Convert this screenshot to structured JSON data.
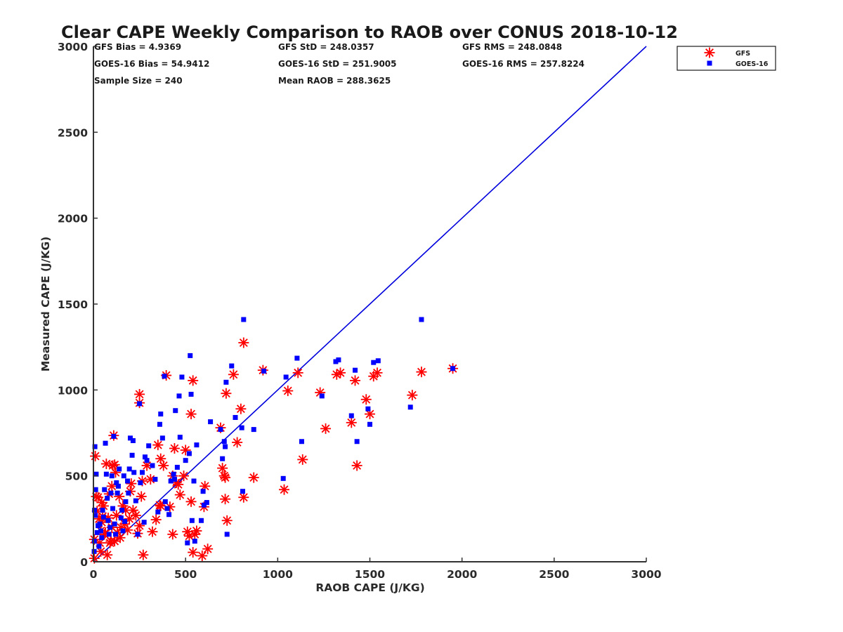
{
  "chart_data": {
    "type": "scatter",
    "title": "Clear CAPE Weekly Comparison to RAOB over CONUS 2018-10-12",
    "xlabel": "RAOB CAPE (J/KG)",
    "ylabel": "Measured CAPE (J/KG)",
    "xlim": [
      0,
      3000
    ],
    "ylim": [
      0,
      3000
    ],
    "xticks": [
      "0",
      "500",
      "1000",
      "1500",
      "2000",
      "2500",
      "3000"
    ],
    "yticks": [
      "0",
      "500",
      "1000",
      "1500",
      "2000",
      "2500",
      "3000"
    ],
    "grid": false,
    "legend_position": "top-right",
    "colors": {
      "gfs": "#ff0000",
      "goes": "#0000ff",
      "line": "#0000dd",
      "axis": "#333333"
    },
    "reference_line": {
      "name": "1:1 line",
      "from": [
        0,
        0
      ],
      "to": [
        3000,
        3000
      ]
    },
    "stats": [
      [
        "GFS Bias = 4.9369",
        "GFS StD = 248.0357",
        "GFS RMS = 248.0848"
      ],
      [
        "GOES-16 Bias = 54.9412",
        "GOES-16 StD = 251.9005",
        "GOES-16 RMS = 257.8224"
      ],
      [
        "Sample Size = 240",
        "Mean RAOB = 288.3625",
        ""
      ]
    ],
    "series": [
      {
        "name": "GFS",
        "marker": "asterisk",
        "points": [
          [
            1950,
            1125
          ],
          [
            1780,
            1105
          ],
          [
            1730,
            970
          ],
          [
            1540,
            1100
          ],
          [
            1520,
            1080
          ],
          [
            1500,
            860
          ],
          [
            1480,
            945
          ],
          [
            1430,
            560
          ],
          [
            1420,
            1055
          ],
          [
            1400,
            810
          ],
          [
            1340,
            1100
          ],
          [
            1320,
            1090
          ],
          [
            1260,
            775
          ],
          [
            1230,
            985
          ],
          [
            1135,
            595
          ],
          [
            1110,
            1100
          ],
          [
            1055,
            995
          ],
          [
            1035,
            420
          ],
          [
            920,
            1115
          ],
          [
            870,
            490
          ],
          [
            815,
            375
          ],
          [
            815,
            1275
          ],
          [
            800,
            890
          ],
          [
            780,
            695
          ],
          [
            760,
            1090
          ],
          [
            725,
            240
          ],
          [
            720,
            980
          ],
          [
            715,
            365
          ],
          [
            715,
            490
          ],
          [
            710,
            500
          ],
          [
            700,
            545
          ],
          [
            690,
            780
          ],
          [
            600,
            320
          ],
          [
            605,
            440
          ],
          [
            620,
            75
          ],
          [
            590,
            35
          ],
          [
            560,
            180
          ],
          [
            550,
            160
          ],
          [
            540,
            55
          ],
          [
            540,
            1055
          ],
          [
            530,
            860
          ],
          [
            530,
            350
          ],
          [
            520,
            150
          ],
          [
            510,
            175
          ],
          [
            500,
            650
          ],
          [
            490,
            500
          ],
          [
            470,
            390
          ],
          [
            460,
            450
          ],
          [
            450,
            460
          ],
          [
            440,
            660
          ],
          [
            430,
            500
          ],
          [
            430,
            160
          ],
          [
            415,
            320
          ],
          [
            395,
            1085
          ],
          [
            380,
            560
          ],
          [
            365,
            600
          ],
          [
            365,
            325
          ],
          [
            360,
            330
          ],
          [
            350,
            680
          ],
          [
            340,
            245
          ],
          [
            320,
            175
          ],
          [
            310,
            480
          ],
          [
            290,
            560
          ],
          [
            270,
            40
          ],
          [
            265,
            470
          ],
          [
            260,
            380
          ],
          [
            250,
            975
          ],
          [
            250,
            925
          ],
          [
            250,
            210
          ],
          [
            240,
            165
          ],
          [
            230,
            270
          ],
          [
            215,
            300
          ],
          [
            205,
            455
          ],
          [
            200,
            410
          ],
          [
            195,
            250
          ],
          [
            185,
            185
          ],
          [
            175,
            300
          ],
          [
            170,
            220
          ],
          [
            160,
            325
          ],
          [
            150,
            200
          ],
          [
            145,
            140
          ],
          [
            140,
            380
          ],
          [
            130,
            170
          ],
          [
            125,
            270
          ],
          [
            120,
            520
          ],
          [
            115,
            565
          ],
          [
            115,
            120
          ],
          [
            110,
            735
          ],
          [
            105,
            560
          ],
          [
            100,
            440
          ],
          [
            100,
            200
          ],
          [
            95,
            120
          ],
          [
            90,
            110
          ],
          [
            85,
            395
          ],
          [
            80,
            255
          ],
          [
            75,
            40
          ],
          [
            70,
            570
          ],
          [
            65,
            170
          ],
          [
            60,
            160
          ],
          [
            55,
            325
          ],
          [
            50,
            265
          ],
          [
            45,
            345
          ],
          [
            45,
            230
          ],
          [
            40,
            180
          ],
          [
            40,
            60
          ],
          [
            35,
            110
          ],
          [
            30,
            250
          ],
          [
            25,
            375
          ],
          [
            20,
            295
          ],
          [
            15,
            380
          ],
          [
            10,
            615
          ],
          [
            5,
            130
          ],
          [
            5,
            20
          ]
        ]
      },
      {
        "name": "GOES-16",
        "marker": "square",
        "points": [
          [
            1950,
            1125
          ],
          [
            1780,
            1410
          ],
          [
            1720,
            900
          ],
          [
            1545,
            1170
          ],
          [
            1520,
            1160
          ],
          [
            1500,
            800
          ],
          [
            1490,
            890
          ],
          [
            1430,
            700
          ],
          [
            1420,
            1115
          ],
          [
            1400,
            850
          ],
          [
            1330,
            1175
          ],
          [
            1315,
            1165
          ],
          [
            1240,
            965
          ],
          [
            1130,
            700
          ],
          [
            1105,
            1185
          ],
          [
            1045,
            1075
          ],
          [
            1030,
            485
          ],
          [
            925,
            1110
          ],
          [
            870,
            770
          ],
          [
            815,
            1410
          ],
          [
            810,
            410
          ],
          [
            805,
            780
          ],
          [
            770,
            840
          ],
          [
            750,
            1140
          ],
          [
            725,
            160
          ],
          [
            720,
            1045
          ],
          [
            715,
            670
          ],
          [
            710,
            700
          ],
          [
            700,
            600
          ],
          [
            690,
            770
          ],
          [
            635,
            815
          ],
          [
            615,
            345
          ],
          [
            600,
            330
          ],
          [
            595,
            410
          ],
          [
            585,
            240
          ],
          [
            560,
            680
          ],
          [
            550,
            120
          ],
          [
            545,
            470
          ],
          [
            535,
            240
          ],
          [
            530,
            975
          ],
          [
            525,
            1200
          ],
          [
            520,
            630
          ],
          [
            510,
            110
          ],
          [
            500,
            590
          ],
          [
            480,
            1075
          ],
          [
            470,
            725
          ],
          [
            465,
            965
          ],
          [
            455,
            550
          ],
          [
            445,
            880
          ],
          [
            440,
            480
          ],
          [
            435,
            510
          ],
          [
            420,
            470
          ],
          [
            410,
            275
          ],
          [
            400,
            310
          ],
          [
            390,
            350
          ],
          [
            385,
            1080
          ],
          [
            375,
            720
          ],
          [
            365,
            860
          ],
          [
            360,
            800
          ],
          [
            350,
            290
          ],
          [
            335,
            480
          ],
          [
            320,
            560
          ],
          [
            300,
            675
          ],
          [
            290,
            590
          ],
          [
            280,
            610
          ],
          [
            275,
            230
          ],
          [
            265,
            520
          ],
          [
            255,
            460
          ],
          [
            250,
            920
          ],
          [
            240,
            160
          ],
          [
            230,
            355
          ],
          [
            220,
            520
          ],
          [
            215,
            705
          ],
          [
            210,
            620
          ],
          [
            200,
            720
          ],
          [
            195,
            540
          ],
          [
            190,
            400
          ],
          [
            185,
            470
          ],
          [
            175,
            350
          ],
          [
            170,
            235
          ],
          [
            165,
            500
          ],
          [
            160,
            180
          ],
          [
            155,
            300
          ],
          [
            150,
            255
          ],
          [
            140,
            540
          ],
          [
            135,
            440
          ],
          [
            130,
            400
          ],
          [
            125,
            460
          ],
          [
            120,
            160
          ],
          [
            115,
            220
          ],
          [
            110,
            730
          ],
          [
            105,
            310
          ],
          [
            100,
            500
          ],
          [
            95,
            400
          ],
          [
            90,
            200
          ],
          [
            85,
            160
          ],
          [
            80,
            240
          ],
          [
            75,
            370
          ],
          [
            70,
            510
          ],
          [
            65,
            690
          ],
          [
            60,
            420
          ],
          [
            55,
            260
          ],
          [
            50,
            300
          ],
          [
            45,
            140
          ],
          [
            40,
            180
          ],
          [
            35,
            220
          ],
          [
            30,
            90
          ],
          [
            25,
            210
          ],
          [
            20,
            170
          ],
          [
            15,
            510
          ],
          [
            12,
            420
          ],
          [
            10,
            270
          ],
          [
            8,
            670
          ],
          [
            6,
            300
          ],
          [
            5,
            120
          ],
          [
            4,
            60
          ]
        ]
      }
    ]
  }
}
